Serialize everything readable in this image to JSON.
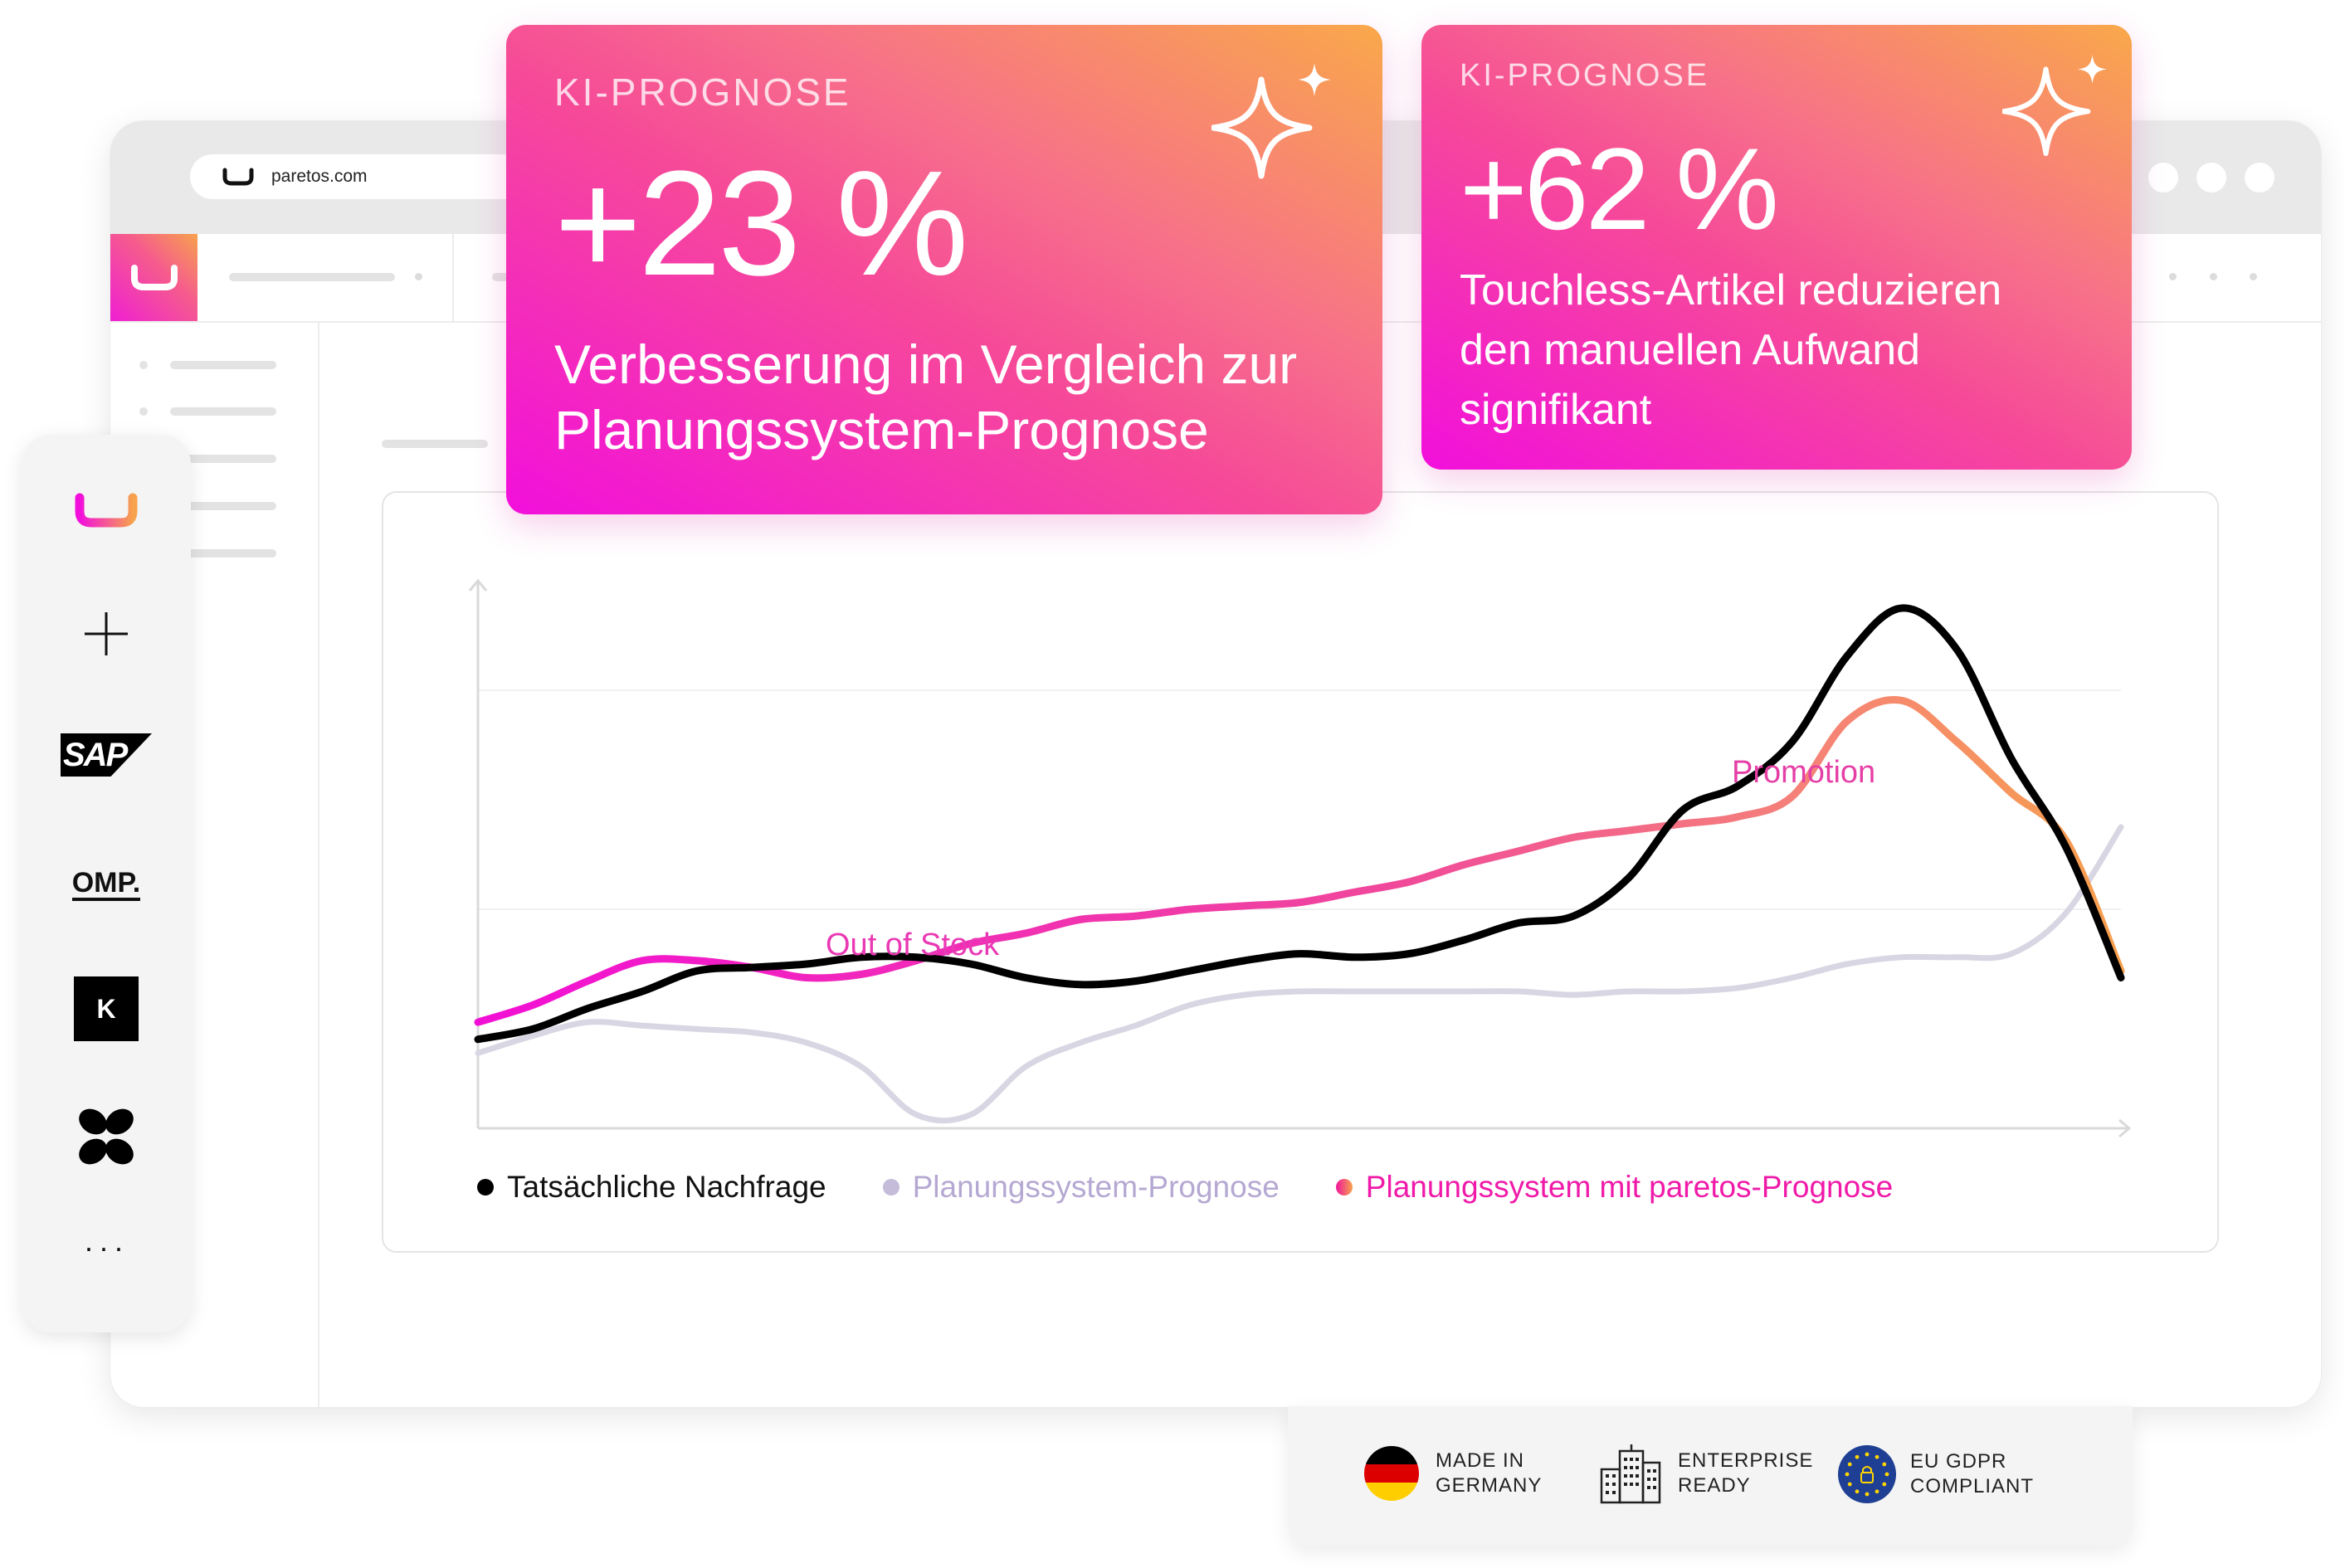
{
  "browser": {
    "url": "paretos.com"
  },
  "integrations": {
    "items": [
      {
        "name": "paretos",
        "icon": "paretos-logo-icon"
      },
      {
        "name": "add",
        "icon": "plus-icon"
      },
      {
        "name": "SAP",
        "icon": "sap-logo-icon"
      },
      {
        "name": "OMP.",
        "icon": "omp-logo-icon"
      },
      {
        "name": "K",
        "icon": "k-logo-icon"
      },
      {
        "name": "butterfly",
        "icon": "butterfly-logo-icon"
      },
      {
        "name": "more",
        "icon": "more-dots-icon"
      }
    ],
    "sap_label": "SAP",
    "omp_label": "OMP.",
    "k_label": "K",
    "more_label": "···"
  },
  "kpi_cards": [
    {
      "label": "KI-PROGNOSE",
      "value": "+23 %",
      "description_line1": "Verbesserung im Vergleich zur",
      "description_line2": "Planungssystem-Prognose",
      "icon": "sparkle-icon"
    },
    {
      "label": "KI-PROGNOSE",
      "value": "+62 %",
      "description_line1": "Touchless-Artikel reduzieren",
      "description_line2": "den manuellen Aufwand",
      "description_line3": "signifikant",
      "icon": "sparkle-icon"
    }
  ],
  "chart_data": {
    "type": "line",
    "x": [
      0,
      1,
      2,
      3,
      4,
      5,
      6,
      7,
      8,
      9,
      10,
      11,
      12,
      13,
      14,
      15,
      16,
      17,
      18,
      19,
      20,
      21,
      22,
      23,
      24,
      25,
      26,
      27,
      28,
      29,
      30
    ],
    "series": [
      {
        "name": "Tatsächliche Nachfrage",
        "color": "#000000",
        "values": [
          26,
          29,
          35,
          40,
          46,
          47,
          48,
          50,
          50,
          48,
          44,
          42,
          43,
          46,
          49,
          51,
          50,
          51,
          55,
          60,
          62,
          73,
          93,
          100,
          113,
          138,
          152,
          140,
          108,
          82,
          44
        ]
      },
      {
        "name": "Planungssystem-Prognose",
        "color": "#d8d6e2",
        "values": [
          22,
          27,
          31,
          30,
          29,
          28,
          25,
          18,
          4,
          4,
          18,
          25,
          30,
          36,
          39,
          40,
          40,
          40,
          40,
          40,
          39,
          40,
          40,
          41,
          44,
          48,
          50,
          50,
          51,
          63,
          88
        ]
      },
      {
        "name": "Planungssystem mit paretos-Prognose",
        "color": "#f0169d",
        "values": [
          31,
          36,
          43,
          49,
          49,
          47,
          44,
          45,
          49,
          54,
          57,
          61,
          62,
          64,
          65,
          66,
          69,
          72,
          77,
          81,
          85,
          87,
          89,
          91,
          97,
          119,
          125,
          113,
          98,
          84,
          46
        ]
      }
    ],
    "annotations": [
      "Out of Stock",
      "Promotion"
    ],
    "xlabel": "",
    "ylabel": "",
    "grid": true,
    "legend": "bottom"
  },
  "legend": {
    "actual": "Tatsächliche Nachfrage",
    "planning": "Planungssystem-Prognose",
    "paretos": "Planungssystem mit paretos-Prognose"
  },
  "annotations": {
    "out_of_stock": "Out of Stock",
    "promotion": "Promotion"
  },
  "badges": [
    {
      "line1": "MADE IN",
      "line2": "GERMANY",
      "icon": "germany-flag-icon"
    },
    {
      "line1": "ENTERPRISE",
      "line2": "READY",
      "icon": "building-icon"
    },
    {
      "line1": "EU GDPR",
      "line2": "COMPLIANT",
      "icon": "eu-lock-icon"
    }
  ],
  "colors": {
    "brand_pink": "#f20fdc",
    "brand_orange": "#f9a84a",
    "actual_line": "#000000",
    "planning_line": "#d8d6e2",
    "legend_planning_text": "#b9a9d4",
    "legend_paretos_text": "#f01aa9"
  }
}
